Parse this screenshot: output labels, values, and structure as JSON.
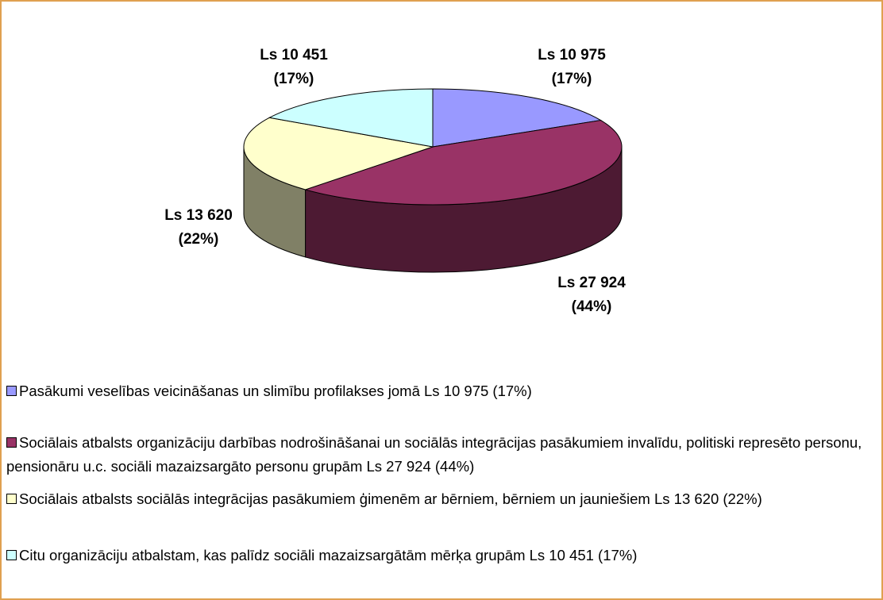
{
  "chart_data": {
    "type": "pie",
    "categories": [
      "Pasākumi veselības veicināšanas un slimību profilakses jomā Ls 10 975 (17%)",
      "Sociālais atbalsts organizāciju darbības nodrošināšanai un sociālās integrācijas pasākumiem invalīdu, politiski represēto personu, pensionāru u.c. sociāli mazaizsargāto personu grupām Ls 27 924 (44%)",
      "Sociālais atbalsts sociālās integrācijas pasākumiem ģimenēm ar bērniem, bērniem un jauniešiem Ls 13 620 (22%)",
      "Citu organizāciju atbalstam, kas palīdz sociāli mazaizsargātām mērķa grupām Ls 10 451 (17%)"
    ],
    "values": [
      10975,
      27924,
      13620,
      10451
    ],
    "value_labels": [
      "Ls 10 975",
      "Ls 27 924",
      "Ls 13 620",
      "Ls 10 451"
    ],
    "percent_labels": [
      "(17%)",
      "(44%)",
      "(22%)",
      "(17%)"
    ],
    "colors": [
      "#9999ff",
      "#993366",
      "#ffffcc",
      "#ccffff"
    ],
    "side_colors": [
      "#4d4d80",
      "#4d1a33",
      "#808066",
      "#668080"
    ],
    "legend": "bottom"
  }
}
